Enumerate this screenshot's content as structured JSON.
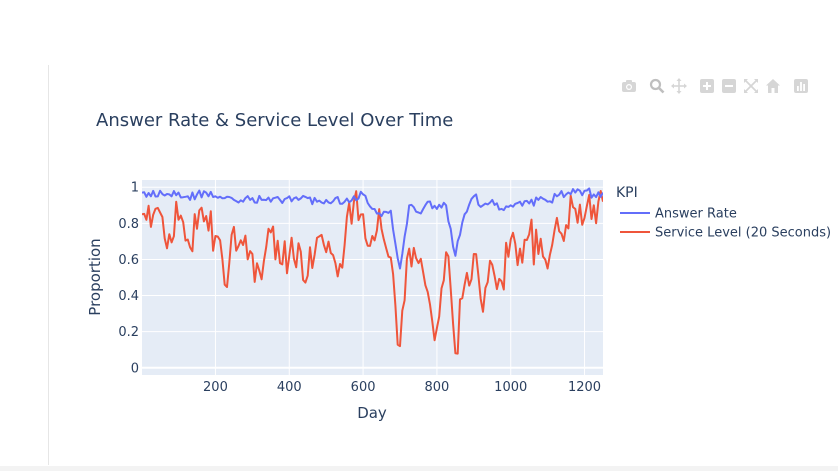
{
  "colors": {
    "answer_rate": "#636efa",
    "service_level": "#ef553b",
    "plot_bg": "#e5ecf6",
    "grid": "#ffffff",
    "text": "#2a3f5f",
    "modebar_icon": "#d6d6d6"
  },
  "modebar": {
    "icons": [
      "camera-icon",
      "zoom-icon",
      "pan-icon",
      "zoom-in-icon",
      "zoom-out-icon",
      "autoscale-icon",
      "reset-axes-icon",
      "spike-lines-icon"
    ]
  },
  "chart_data": {
    "type": "line",
    "title": "Answer Rate & Service Level Over Time",
    "xlabel": "Day",
    "ylabel": "Proportion",
    "xlim": [
      1,
      1250
    ],
    "ylim": [
      -0.04,
      1.04
    ],
    "xticks": [
      200,
      400,
      600,
      800,
      1000,
      1200
    ],
    "xtick_labels": [
      "200",
      "400",
      "600",
      "800",
      "1000",
      "1200"
    ],
    "yticks": [
      0,
      0.2,
      0.4,
      0.6,
      0.8,
      1
    ],
    "ytick_labels": [
      "0",
      "0.2",
      "0.4",
      "0.6",
      "0.8",
      "1"
    ],
    "grid": true,
    "legend": {
      "title": "KPI",
      "position": "right"
    },
    "series": [
      {
        "name": "Answer Rate",
        "color": "#636efa",
        "x": [
          1,
          25,
          50,
          75,
          100,
          125,
          150,
          175,
          200,
          225,
          250,
          275,
          300,
          325,
          350,
          375,
          400,
          425,
          450,
          475,
          500,
          525,
          550,
          575,
          600,
          625,
          650,
          675,
          700,
          725,
          750,
          775,
          800,
          825,
          850,
          875,
          900,
          925,
          950,
          975,
          1000,
          1025,
          1050,
          1075,
          1100,
          1125,
          1150,
          1175,
          1200,
          1225,
          1250
        ],
        "values": [
          0.97,
          0.95,
          0.98,
          0.96,
          0.97,
          0.95,
          0.96,
          0.97,
          0.95,
          0.94,
          0.93,
          0.92,
          0.94,
          0.93,
          0.92,
          0.93,
          0.95,
          0.93,
          0.94,
          0.92,
          0.93,
          0.94,
          0.92,
          0.95,
          0.96,
          0.88,
          0.84,
          0.87,
          0.55,
          0.9,
          0.86,
          0.92,
          0.88,
          0.9,
          0.62,
          0.85,
          0.95,
          0.9,
          0.93,
          0.88,
          0.9,
          0.92,
          0.91,
          0.93,
          0.92,
          0.95,
          0.96,
          0.97,
          0.98,
          0.96,
          0.97
        ]
      },
      {
        "name": "Service Level (20 Seconds)",
        "color": "#ef553b",
        "x": [
          1,
          25,
          50,
          75,
          100,
          125,
          150,
          175,
          200,
          225,
          250,
          275,
          300,
          325,
          350,
          375,
          400,
          425,
          450,
          475,
          500,
          525,
          550,
          575,
          600,
          625,
          650,
          675,
          700,
          725,
          750,
          775,
          800,
          825,
          850,
          875,
          900,
          925,
          950,
          975,
          1000,
          1025,
          1050,
          1075,
          1100,
          1125,
          1150,
          1175,
          1200,
          1225,
          1250
        ],
        "values": [
          0.85,
          0.78,
          0.86,
          0.74,
          0.82,
          0.71,
          0.77,
          0.84,
          0.73,
          0.46,
          0.78,
          0.68,
          0.63,
          0.49,
          0.75,
          0.58,
          0.62,
          0.69,
          0.51,
          0.72,
          0.64,
          0.58,
          0.68,
          0.92,
          0.85,
          0.73,
          0.77,
          0.61,
          0.12,
          0.66,
          0.58,
          0.42,
          0.22,
          0.64,
          0.08,
          0.46,
          0.63,
          0.31,
          0.57,
          0.48,
          0.71,
          0.66,
          0.74,
          0.63,
          0.55,
          0.83,
          0.79,
          0.88,
          0.83,
          0.9,
          0.92
        ]
      }
    ]
  }
}
